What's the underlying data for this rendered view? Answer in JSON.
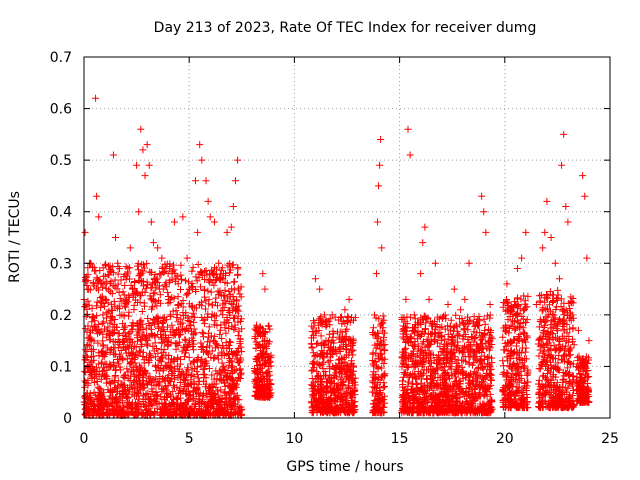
{
  "chart_data": {
    "type": "scatter",
    "title": "Day 213 of 2023, Rate Of TEC Index for receiver dumg",
    "xlabel": "GPS time / hours",
    "ylabel": "ROTI / TECUs",
    "xlim": [
      0,
      25
    ],
    "ylim": [
      0,
      0.7
    ],
    "x_ticks": [
      "0",
      "5",
      "10",
      "15",
      "20",
      "25"
    ],
    "y_ticks": [
      "0",
      "0.1",
      "0.2",
      "0.3",
      "0.4",
      "0.5",
      "0.6",
      "0.7"
    ],
    "x_tick_values": [
      0,
      5,
      10,
      15,
      20,
      25
    ],
    "y_tick_values": [
      0,
      0.1,
      0.2,
      0.3,
      0.4,
      0.5,
      0.6,
      0.7
    ],
    "grid": true,
    "marker": "+",
    "color": "#ff0000",
    "series": [
      {
        "name": "ROTI",
        "points": [
          [
            0.05,
            0.36
          ],
          [
            0.1,
            0.22
          ],
          [
            0.3,
            0.3
          ],
          [
            0.4,
            0.17
          ],
          [
            0.55,
            0.62
          ],
          [
            0.6,
            0.43
          ],
          [
            0.7,
            0.39
          ],
          [
            0.8,
            0.26
          ],
          [
            0.9,
            0.2
          ],
          [
            1.0,
            0.26
          ],
          [
            1.2,
            0.16
          ],
          [
            1.4,
            0.51
          ],
          [
            1.5,
            0.35
          ],
          [
            1.6,
            0.3
          ],
          [
            1.8,
            0.2
          ],
          [
            2.0,
            0.23
          ],
          [
            2.2,
            0.33
          ],
          [
            2.3,
            0.25
          ],
          [
            2.5,
            0.49
          ],
          [
            2.6,
            0.4
          ],
          [
            2.7,
            0.56
          ],
          [
            2.8,
            0.52
          ],
          [
            2.9,
            0.47
          ],
          [
            3.0,
            0.53
          ],
          [
            3.1,
            0.49
          ],
          [
            3.2,
            0.38
          ],
          [
            3.3,
            0.34
          ],
          [
            3.5,
            0.33
          ],
          [
            3.7,
            0.31
          ],
          [
            3.9,
            0.29
          ],
          [
            4.0,
            0.28
          ],
          [
            4.1,
            0.2
          ],
          [
            4.3,
            0.38
          ],
          [
            4.5,
            0.22
          ],
          [
            4.7,
            0.39
          ],
          [
            4.9,
            0.31
          ],
          [
            5.0,
            0.25
          ],
          [
            5.3,
            0.46
          ],
          [
            5.4,
            0.36
          ],
          [
            5.5,
            0.53
          ],
          [
            5.6,
            0.5
          ],
          [
            5.8,
            0.46
          ],
          [
            5.9,
            0.42
          ],
          [
            6.0,
            0.39
          ],
          [
            6.2,
            0.38
          ],
          [
            6.4,
            0.3
          ],
          [
            6.6,
            0.27
          ],
          [
            6.8,
            0.36
          ],
          [
            7.0,
            0.37
          ],
          [
            7.1,
            0.41
          ],
          [
            7.2,
            0.46
          ],
          [
            7.3,
            0.5
          ],
          [
            8.2,
            0.18
          ],
          [
            8.3,
            0.12
          ],
          [
            8.5,
            0.28
          ],
          [
            8.6,
            0.25
          ],
          [
            8.7,
            0.15
          ],
          [
            8.8,
            0.09
          ],
          [
            11.0,
            0.27
          ],
          [
            11.2,
            0.25
          ],
          [
            11.5,
            0.15
          ],
          [
            11.8,
            0.2
          ],
          [
            12.1,
            0.19
          ],
          [
            12.4,
            0.21
          ],
          [
            12.6,
            0.23
          ],
          [
            12.8,
            0.15
          ],
          [
            13.9,
            0.28
          ],
          [
            13.95,
            0.38
          ],
          [
            14.0,
            0.45
          ],
          [
            14.05,
            0.49
          ],
          [
            14.1,
            0.54
          ],
          [
            14.15,
            0.33
          ],
          [
            15.3,
            0.23
          ],
          [
            15.4,
            0.56
          ],
          [
            15.5,
            0.51
          ],
          [
            15.7,
            0.2
          ],
          [
            16.0,
            0.28
          ],
          [
            16.1,
            0.34
          ],
          [
            16.2,
            0.37
          ],
          [
            16.4,
            0.23
          ],
          [
            16.7,
            0.3
          ],
          [
            17.0,
            0.15
          ],
          [
            17.3,
            0.22
          ],
          [
            17.6,
            0.25
          ],
          [
            17.9,
            0.21
          ],
          [
            18.1,
            0.23
          ],
          [
            18.3,
            0.3
          ],
          [
            18.6,
            0.18
          ],
          [
            18.9,
            0.43
          ],
          [
            19.0,
            0.4
          ],
          [
            19.1,
            0.36
          ],
          [
            19.3,
            0.22
          ],
          [
            20.1,
            0.26
          ],
          [
            20.3,
            0.18
          ],
          [
            20.6,
            0.29
          ],
          [
            20.8,
            0.31
          ],
          [
            21.0,
            0.36
          ],
          [
            21.5,
            0.22
          ],
          [
            21.8,
            0.33
          ],
          [
            21.9,
            0.36
          ],
          [
            22.0,
            0.42
          ],
          [
            22.2,
            0.35
          ],
          [
            22.4,
            0.3
          ],
          [
            22.6,
            0.27
          ],
          [
            22.7,
            0.49
          ],
          [
            22.8,
            0.55
          ],
          [
            22.9,
            0.41
          ],
          [
            23.0,
            0.38
          ],
          [
            23.2,
            0.2
          ],
          [
            23.5,
            0.17
          ],
          [
            23.7,
            0.47
          ],
          [
            23.8,
            0.43
          ],
          [
            23.9,
            0.31
          ],
          [
            24.0,
            0.15
          ]
        ]
      }
    ],
    "dense_clusters": [
      {
        "x_start": 0.0,
        "x_end": 7.5,
        "y_min": 0.005,
        "y_max": 0.3
      },
      {
        "x_start": 8.1,
        "x_end": 8.9,
        "y_min": 0.04,
        "y_max": 0.18
      },
      {
        "x_start": 10.8,
        "x_end": 12.9,
        "y_min": 0.01,
        "y_max": 0.2
      },
      {
        "x_start": 13.7,
        "x_end": 14.3,
        "y_min": 0.01,
        "y_max": 0.2
      },
      {
        "x_start": 15.1,
        "x_end": 19.4,
        "y_min": 0.01,
        "y_max": 0.2
      },
      {
        "x_start": 19.9,
        "x_end": 21.1,
        "y_min": 0.02,
        "y_max": 0.24
      },
      {
        "x_start": 21.6,
        "x_end": 23.3,
        "y_min": 0.02,
        "y_max": 0.25
      },
      {
        "x_start": 23.4,
        "x_end": 24.0,
        "y_min": 0.03,
        "y_max": 0.12
      }
    ]
  }
}
